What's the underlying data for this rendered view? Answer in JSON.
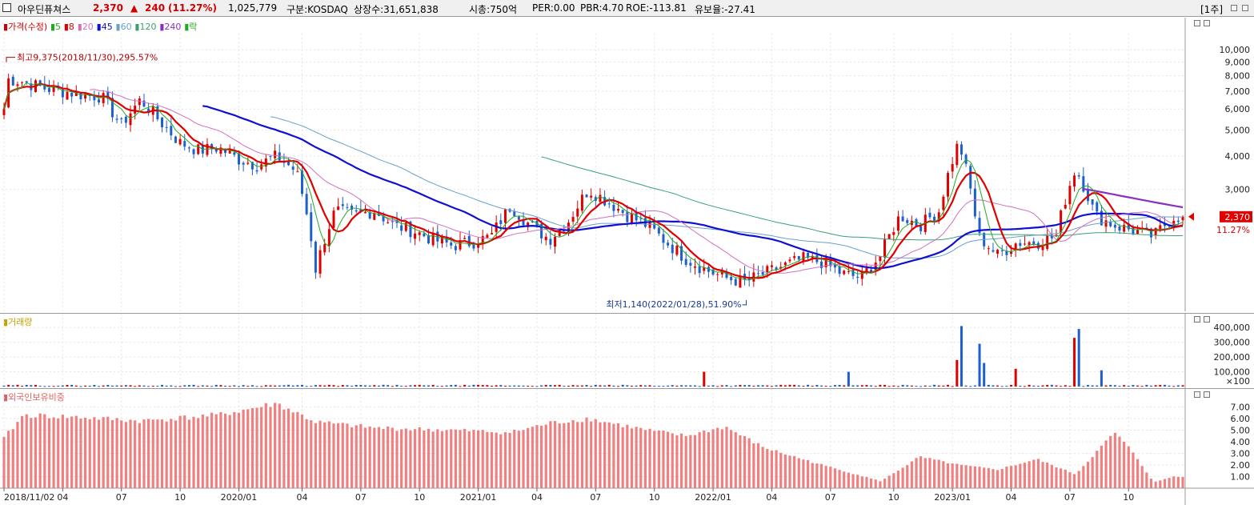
{
  "header": {
    "name": "아우딘퓨쳐스",
    "price": "2,370",
    "arrow": "▲",
    "change": "240",
    "change_pct": "(11.27%)",
    "volume": "1,025,779",
    "market": "구분:KOSDAQ",
    "shares": "상장수:31,651,838",
    "mcap": "시총:750억",
    "per": "PER:0.00",
    "pbr": "PBR:4.70",
    "roe": "ROE:-113.81",
    "float": "유보율:-27.41",
    "period": "[1주]"
  },
  "legend": {
    "price_label": "가격(수정)",
    "ma5": "5",
    "ma8": "8",
    "ma20": "20",
    "ma45": "45",
    "ma60": "60",
    "ma120": "120",
    "ma240": "240",
    "fall": "락",
    "volume_label": "거래량",
    "foreign_label": "외국인보유비중"
  },
  "annotations": {
    "high": "최고9,375(2018/11/30),295.57%",
    "low": "최저1,140(2022/01/28),51.90%"
  },
  "price_tag": {
    "value": "2,370",
    "pct": "11.27%"
  },
  "colors": {
    "up": "#e00000",
    "down": "#1e5fd0",
    "ma5": "#22aa22",
    "ma8": "#e00000",
    "ma20": "#d070c0",
    "ma45": "#1010d0",
    "ma60": "#6aa0c8",
    "ma120": "#3aa070",
    "ma240": "#8a30c0",
    "foreign_bar": "#f08080"
  },
  "chart_data": [
    {
      "type": "candlestick",
      "title": "가격(수정)",
      "y_ticks": [
        "10,000",
        "9,000",
        "8,000",
        "7,000",
        "6,000",
        "5,000",
        "4,000",
        "3,000"
      ],
      "y_scale": "log",
      "ylim": [
        1100,
        11500
      ],
      "x_labels": [
        "2018/11/02",
        "04",
        "07",
        "10",
        "2020/01",
        "04",
        "07",
        "10",
        "2021/01",
        "04",
        "07",
        "10",
        "2022/01",
        "04",
        "07",
        "10",
        "2023/01",
        "04",
        "07",
        "10"
      ],
      "close_anchors": [
        [
          "2018/11/02",
          6000
        ],
        [
          "2018/11/30",
          7800
        ],
        [
          "2018/12",
          7600
        ],
        [
          "2019/01",
          7200
        ],
        [
          "2019/02",
          7000
        ],
        [
          "2019/03",
          6800
        ],
        [
          "2019/04",
          6700
        ],
        [
          "2019/05",
          5200
        ],
        [
          "2019/06",
          6500
        ],
        [
          "2019/07",
          5400
        ],
        [
          "2019/08",
          4500
        ],
        [
          "2019/09",
          4200
        ],
        [
          "2019/10",
          4300
        ],
        [
          "2019/11",
          3900
        ],
        [
          "2019/12",
          3700
        ],
        [
          "2020/01",
          4000
        ],
        [
          "2020/02",
          3500
        ],
        [
          "2020/03",
          1500
        ],
        [
          "2020/04",
          2500
        ],
        [
          "2020/05",
          2400
        ],
        [
          "2020/06",
          2500
        ],
        [
          "2020/07",
          2200
        ],
        [
          "2020/08",
          2100
        ],
        [
          "2020/09",
          1950
        ],
        [
          "2020/10",
          1850
        ],
        [
          "2020/11",
          1900
        ],
        [
          "2020/12",
          2000
        ],
        [
          "2021/01",
          2600
        ],
        [
          "2021/02",
          2200
        ],
        [
          "2021/03",
          1950
        ],
        [
          "2021/04",
          2300
        ],
        [
          "2021/05",
          3000
        ],
        [
          "2021/06",
          2700
        ],
        [
          "2021/07",
          2400
        ],
        [
          "2021/08",
          2200
        ],
        [
          "2021/09",
          1900
        ],
        [
          "2021/10",
          1650
        ],
        [
          "2021/11",
          1500
        ],
        [
          "2021/12",
          1400
        ],
        [
          "2022/01",
          1350
        ],
        [
          "2022/02",
          1450
        ],
        [
          "2022/03",
          1550
        ],
        [
          "2022/04",
          1650
        ],
        [
          "2022/05",
          1600
        ],
        [
          "2022/06",
          1450
        ],
        [
          "2022/07",
          1400
        ],
        [
          "2022/08",
          1700
        ],
        [
          "2022/09",
          2400
        ],
        [
          "2022/10",
          2200
        ],
        [
          "2022/11",
          2500
        ],
        [
          "2022/12",
          4500
        ],
        [
          "2023/01",
          2000
        ],
        [
          "2023/02",
          1700
        ],
        [
          "2023/03",
          1900
        ],
        [
          "2023/04",
          1900
        ],
        [
          "2023/05",
          2000
        ],
        [
          "2023/06",
          3600
        ],
        [
          "2023/07",
          2400
        ],
        [
          "2023/08",
          2200
        ],
        [
          "2023/09",
          2100
        ],
        [
          "2023/10",
          2000
        ],
        [
          "2023/11",
          2370
        ]
      ],
      "high": {
        "date": "2018/11/30",
        "value": 9375
      },
      "low": {
        "date": "2022/01/28",
        "value": 1140
      }
    },
    {
      "type": "bar",
      "title": "거래량",
      "y_ticks": [
        "400,000",
        "300,000",
        "200,000",
        "100,000"
      ],
      "unit": "×100",
      "ylim": [
        0,
        450000
      ],
      "spikes": [
        [
          "2021/11",
          100000
        ],
        [
          "2022/06",
          100000
        ],
        [
          "2022/12",
          180000
        ],
        [
          "2022/12",
          410000
        ],
        [
          "2023/01",
          290000
        ],
        [
          "2023/01",
          160000
        ],
        [
          "2023/03",
          120000
        ],
        [
          "2023/06",
          390000
        ],
        [
          "2023/06",
          330000
        ],
        [
          "2023/07",
          110000
        ]
      ]
    },
    {
      "type": "bar",
      "title": "외국인보유비중",
      "y_ticks": [
        "7.00",
        "6.00",
        "5.00",
        "4.00",
        "3.00",
        "2.00",
        "1.00"
      ],
      "ylim": [
        0,
        8
      ],
      "anchors": [
        [
          "2018/11",
          4.3
        ],
        [
          "2018/12",
          6.3
        ],
        [
          "2019/03",
          6.1
        ],
        [
          "2019/06",
          5.8
        ],
        [
          "2019/10",
          6.3
        ],
        [
          "2020/01",
          7.3
        ],
        [
          "2020/03",
          5.7
        ],
        [
          "2020/06",
          5.2
        ],
        [
          "2020/10",
          5.0
        ],
        [
          "2021/01",
          4.8
        ],
        [
          "2021/03",
          5.6
        ],
        [
          "2021/05",
          6.0
        ],
        [
          "2021/08",
          5.0
        ],
        [
          "2021/10",
          4.5
        ],
        [
          "2021/12",
          5.3
        ],
        [
          "2022/02",
          3.5
        ],
        [
          "2022/05",
          2.0
        ],
        [
          "2022/08",
          0.6
        ],
        [
          "2022/10",
          2.7
        ],
        [
          "2022/12",
          2.0
        ],
        [
          "2023/02",
          1.6
        ],
        [
          "2023/04",
          2.5
        ],
        [
          "2023/06",
          1.2
        ],
        [
          "2023/08",
          4.8
        ],
        [
          "2023/09",
          3.0
        ],
        [
          "2023/10",
          0.5
        ],
        [
          "2023/11",
          1.0
        ]
      ]
    }
  ]
}
